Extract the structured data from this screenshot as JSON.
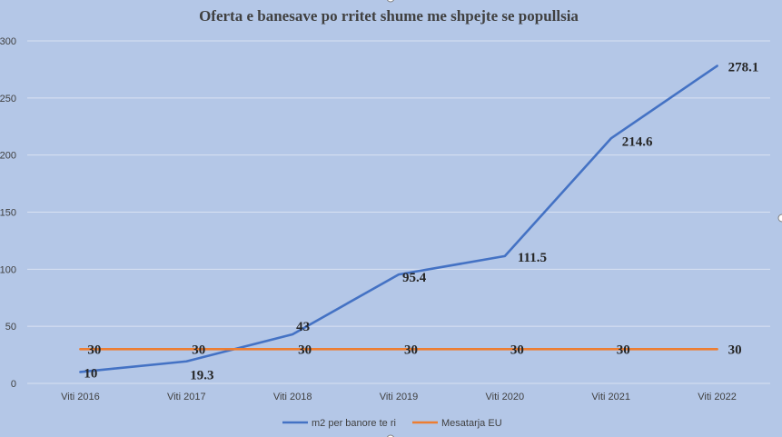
{
  "chart_data": {
    "type": "line",
    "title": "Oferta e banesave po rritet shume me shpejte se popullsia",
    "categories": [
      "Viti 2016",
      "Viti 2017",
      "Viti 2018",
      "Viti 2019",
      "Viti 2020",
      "Viti 2021",
      "Viti 2022"
    ],
    "series": [
      {
        "name": "m2 per banore te ri",
        "values": [
          10,
          19.3,
          43,
          95.4,
          111.5,
          214.6,
          278.1
        ],
        "labels": [
          "10",
          "19.3",
          "43",
          "95.4",
          "111.5",
          "214.6",
          "278.1"
        ],
        "color": "#4472c4"
      },
      {
        "name": "Mesatarja EU",
        "values": [
          30,
          30,
          30,
          30,
          30,
          30,
          30
        ],
        "labels": [
          "30",
          "30",
          "30",
          "30",
          "30",
          "30",
          "30"
        ],
        "color": "#ed7d31"
      }
    ],
    "ylim": [
      0,
      300
    ],
    "yticks": [
      0,
      50,
      100,
      150,
      200,
      250,
      300
    ],
    "grid": true,
    "legend_position": "bottom",
    "background": "#b4c7e7",
    "gridline_color": "#d9e1f2"
  }
}
